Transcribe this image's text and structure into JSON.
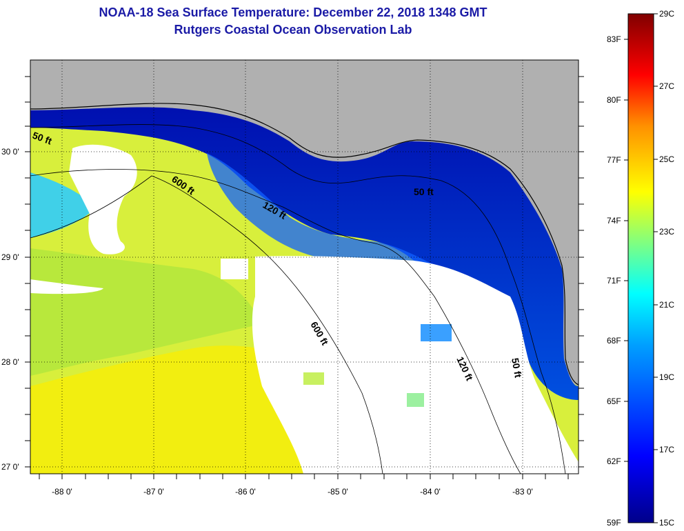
{
  "title": {
    "line1": "NOAA-18 Sea Surface Temperature:  December 22, 2018 1348 GMT",
    "line2": "Rutgers Coastal Ocean Observation Lab"
  },
  "map": {
    "lon_labels": [
      "-88 0'",
      "-87 0'",
      "-86 0'",
      "-85 0'",
      "-84 0'",
      "-83 0'"
    ],
    "lat_labels": [
      "30 0'",
      "29 0'",
      "28 0'",
      "27 0'"
    ],
    "contour_labels": [
      "50 ft",
      "600 ft",
      "120 ft",
      "50 ft",
      "600 ft",
      "120 ft",
      "50 ft"
    ],
    "colors": {
      "land": "#b0b0b0",
      "cloud": "#ffffff"
    }
  },
  "colorbar": {
    "fahrenheit_labels": [
      "83F",
      "80F",
      "77F",
      "74F",
      "71F",
      "68F",
      "65F",
      "62F",
      "59F"
    ],
    "celsius_labels": [
      "29C",
      "27C",
      "25C",
      "23C",
      "21C",
      "19C",
      "17C",
      "15C"
    ]
  }
}
